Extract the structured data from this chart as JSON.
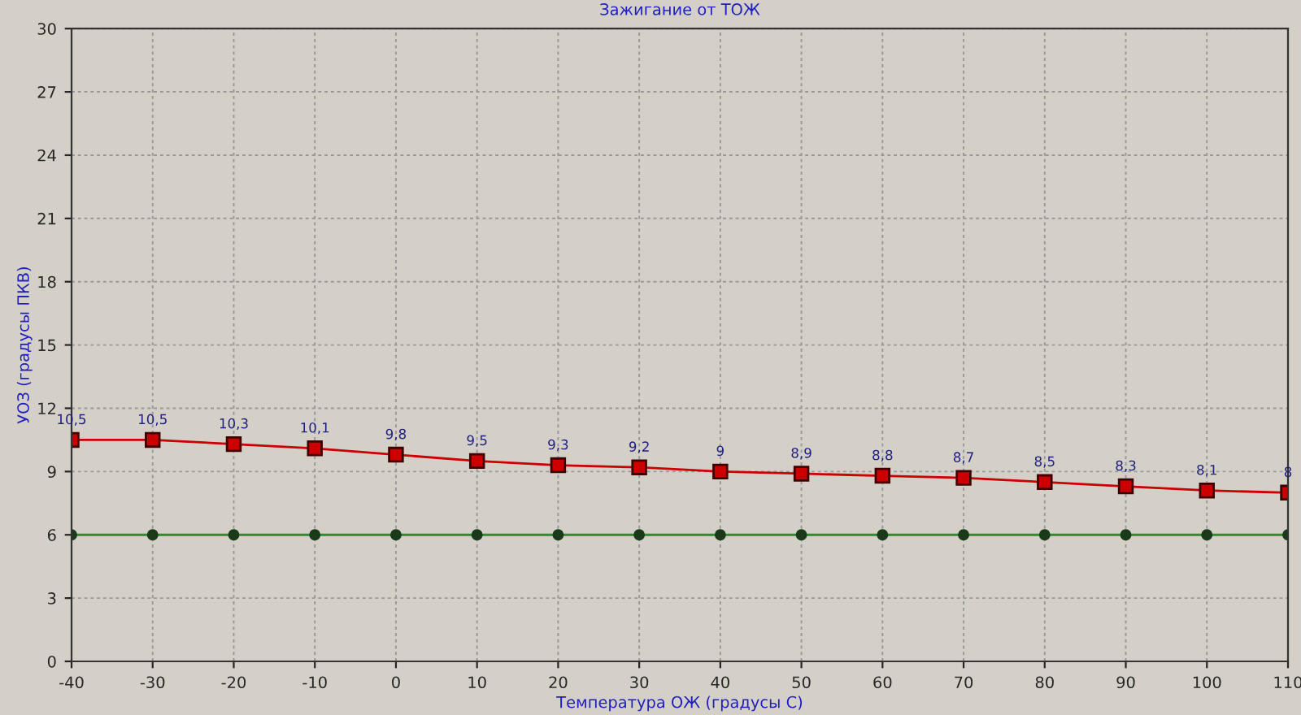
{
  "chart_data": {
    "type": "line",
    "title": "Зажигание от ТОЖ",
    "xlabel": "Температура ОЖ (градусы С)",
    "ylabel": "УОЗ (градусы ПКВ)",
    "x": [
      -40,
      -30,
      -20,
      -10,
      0,
      10,
      20,
      30,
      40,
      50,
      60,
      70,
      80,
      90,
      100,
      110
    ],
    "series": [
      {
        "color": "#cc0000",
        "marker": "square",
        "values": [
          10.5,
          10.5,
          10.3,
          10.1,
          9.8,
          9.5,
          9.3,
          9.2,
          9,
          8.9,
          8.8,
          8.7,
          8.5,
          8.3,
          8.1,
          8
        ],
        "value_labels": [
          "10,5",
          "10,5",
          "10,3",
          "10,1",
          "9,8",
          "9,5",
          "9,3",
          "9,2",
          "9",
          "8,9",
          "8,8",
          "8,7",
          "8,5",
          "8,3",
          "8,1",
          "8"
        ]
      },
      {
        "color": "#2e8b2e",
        "marker": "circle",
        "values": [
          6,
          6,
          6,
          6,
          6,
          6,
          6,
          6,
          6,
          6,
          6,
          6,
          6,
          6,
          6,
          6
        ]
      }
    ],
    "xlim": [
      -40,
      110
    ],
    "xticks": [
      -40,
      -30,
      -20,
      -10,
      0,
      10,
      20,
      30,
      40,
      50,
      60,
      70,
      80,
      90,
      100,
      110
    ],
    "ylim": [
      0,
      30
    ],
    "yticks": [
      0,
      3,
      6,
      9,
      12,
      15,
      18,
      21,
      24,
      27,
      30
    ],
    "grid": true,
    "line_style": "solid"
  }
}
